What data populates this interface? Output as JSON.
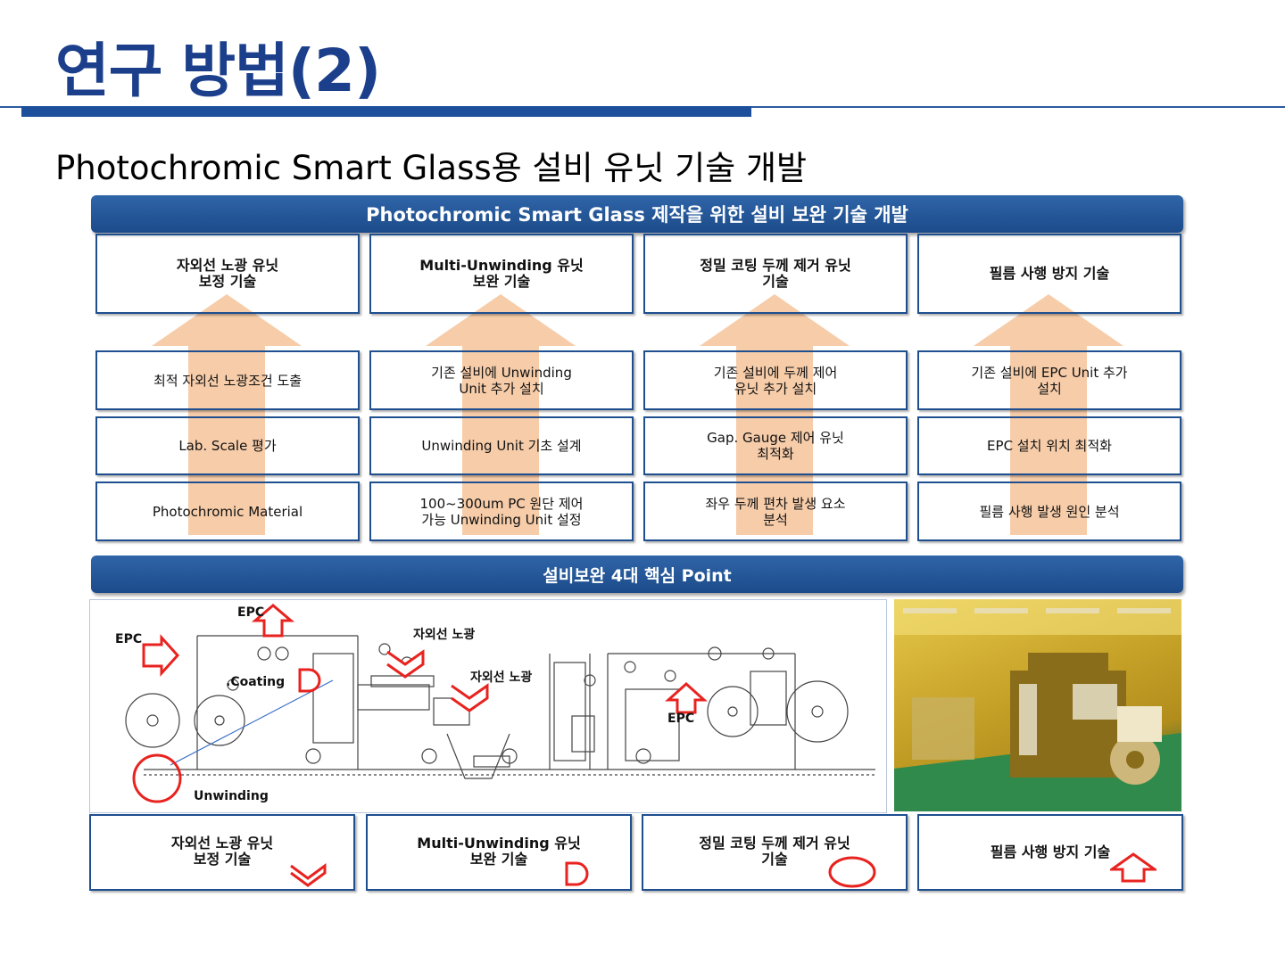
{
  "title": "연구 방법(2)",
  "subtitle": "Photochromic Smart Glass용 설비 유닛 기술 개발",
  "banner_top": "Photochromic Smart Glass 제작을 위한 설비 보완 기술 개발",
  "columns": [
    {
      "header": "자외선 노광 유닛\n보정 기술",
      "rows": [
        "최적 자외선 노광조건 도출",
        "Lab. Scale 평가",
        "Photochromic Material"
      ]
    },
    {
      "header": "Multi-Unwinding 유닛\n보완 기술",
      "rows": [
        "기존 설비에 Unwinding\nUnit 추가 설치",
        "Unwinding Unit 기초 설계",
        "100~300um PC 원단 제어\n가능 Unwinding Unit 설정"
      ]
    },
    {
      "header": "정밀 코팅 두께 제거 유닛\n기술",
      "rows": [
        "기존 설비에 두께 제어\n유닛 추가 설치",
        "Gap. Gauge 제어 유닛\n최적화",
        "좌우 두께 편차 발생 요소\n분석"
      ]
    },
    {
      "header": "필름 사행 방지 기술",
      "rows": [
        "기존 설비에 EPC Unit 추가\n설치",
        "EPC 설치 위치 최적화",
        "필름 사행 발생 원인 분석"
      ]
    }
  ],
  "banner_mid": "설비보완 4대 핵심 Point",
  "diagram_labels": {
    "epc_left": "EPC",
    "epc_top": "EPC",
    "coating": ".Coating",
    "uv1": "자외선 노광",
    "uv2": "자외선 노광",
    "epc_right": "EPC",
    "unwinding": "Unwinding"
  },
  "bottom_boxes": [
    {
      "text": "자외선 노광 유닛\n보정 기술",
      "symbol": "chevron-down"
    },
    {
      "text": "Multi-Unwinding 유닛\n보완 기술",
      "symbol": "d-shape"
    },
    {
      "text": "정밀 코팅 두께 제거 유닛\n기술",
      "symbol": "circle"
    },
    {
      "text": "필름 사행 방지 기술",
      "symbol": "up-arrow"
    }
  ],
  "colors": {
    "title": "#1c3f8c",
    "banner": "#1c4b8a",
    "arrow": "#f6c9a4",
    "marker": "#e8231f",
    "border": "#1f4f8f"
  }
}
